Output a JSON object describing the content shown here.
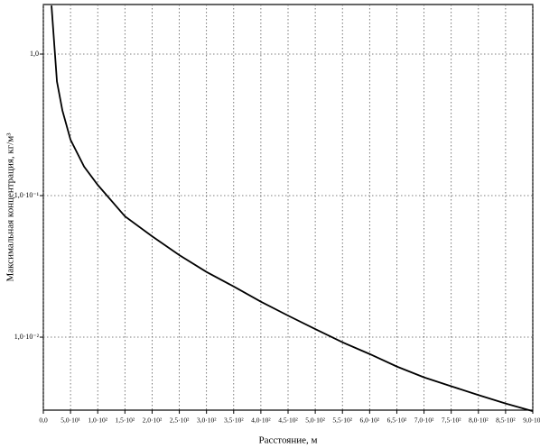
{
  "chart_data": {
    "type": "line",
    "x_label": "Расстояние, м",
    "y_label": "Максимальная концентрация, кг/м³",
    "x": [
      15,
      25,
      35,
      50,
      75,
      100,
      150,
      200,
      250,
      300,
      350,
      400,
      450,
      500,
      550,
      600,
      650,
      700,
      750,
      800,
      850,
      900
    ],
    "series": [
      {
        "name": "Максимальная концентрация",
        "color": "#000000",
        "values": [
          2.2,
          0.64,
          0.4,
          0.248,
          0.16,
          0.119,
          0.0714,
          0.0516,
          0.038,
          0.0289,
          0.0228,
          0.0178,
          0.0142,
          0.0114,
          0.0092,
          0.0076,
          0.0062,
          0.0052,
          0.0045,
          0.0039,
          0.0034,
          0.003
        ]
      }
    ],
    "xlim": [
      0,
      900
    ],
    "xticks": [
      {
        "value": 0,
        "label": "0,0"
      },
      {
        "value": 50,
        "label": "5,0·10¹"
      },
      {
        "value": 100,
        "label": "1,0·10²"
      },
      {
        "value": 150,
        "label": "1,5·10²"
      },
      {
        "value": 200,
        "label": "2,0·10²"
      },
      {
        "value": 250,
        "label": "2,5·10²"
      },
      {
        "value": 300,
        "label": "3,0·10²"
      },
      {
        "value": 350,
        "label": "3,5·10²"
      },
      {
        "value": 400,
        "label": "4,0·10²"
      },
      {
        "value": 450,
        "label": "4,5·10²"
      },
      {
        "value": 500,
        "label": "5,0·10²"
      },
      {
        "value": 550,
        "label": "5,5·10²"
      },
      {
        "value": 600,
        "label": "6,0·10²"
      },
      {
        "value": 650,
        "label": "6,5·10²"
      },
      {
        "value": 700,
        "label": "7,0·10²"
      },
      {
        "value": 750,
        "label": "7,5·10²"
      },
      {
        "value": 800,
        "label": "8,0·10²"
      },
      {
        "value": 850,
        "label": "8,5·10²"
      },
      {
        "value": 900,
        "label": "9,0·10²"
      }
    ],
    "ylim": [
      0.00305,
      2.24
    ],
    "yticks": [
      {
        "value": 1,
        "label": "1,0"
      },
      {
        "value": 0.1,
        "label": "1,0·10⁻¹"
      },
      {
        "value": 0.01,
        "label": "1,0·10⁻²"
      }
    ],
    "y_log": true,
    "grid": true
  }
}
